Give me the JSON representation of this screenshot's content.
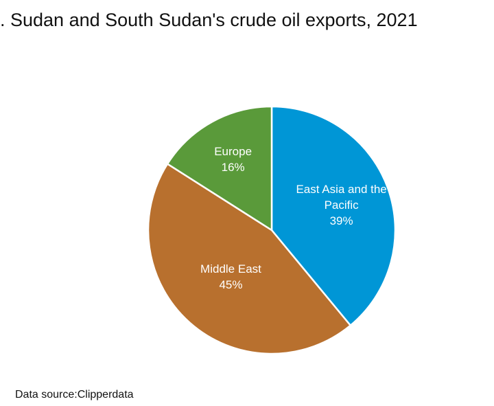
{
  "chart_data": {
    "type": "pie",
    "title": ". Sudan and South Sudan's crude oil exports, 2021",
    "source": "Data source:Clipperdata",
    "categories": [
      "East Asia and the Pacific",
      "Middle East",
      "Europe"
    ],
    "values": [
      39,
      45,
      16
    ],
    "value_labels": [
      "39%",
      "45%",
      "16%"
    ],
    "colors": [
      "#0096d6",
      "#b8702e",
      "#5a9a3a"
    ]
  }
}
